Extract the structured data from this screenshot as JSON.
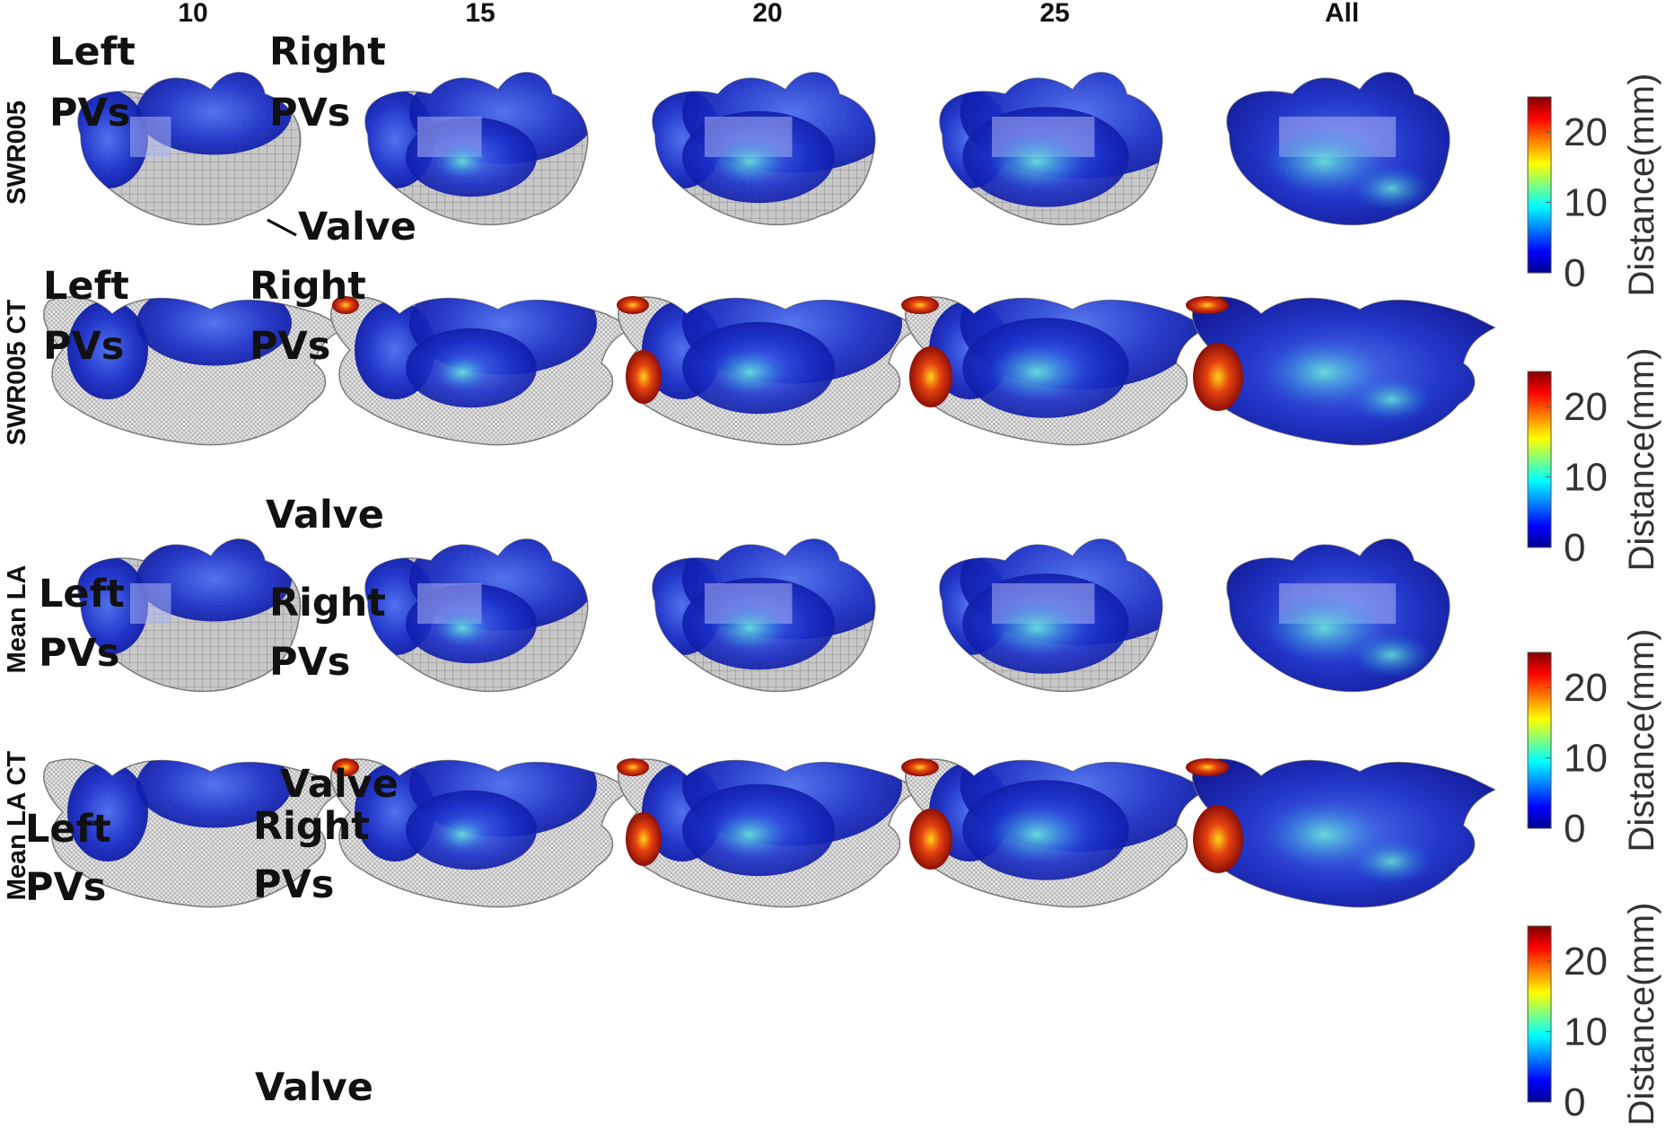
{
  "column_titles": [
    "10",
    "15",
    "20",
    "25",
    "All"
  ],
  "rows": [
    {
      "label": "SWR005",
      "surface": "smooth",
      "annotations": {
        "left": [
          "Left",
          "PVs"
        ],
        "right": [
          "Right",
          "PVs"
        ],
        "valve": "Valve"
      }
    },
    {
      "label": "SWR005 CT",
      "surface": "ct",
      "annotations": {
        "left": [
          "Left",
          "PVs"
        ],
        "right": [
          "Right",
          "PVs"
        ],
        "valve": "Valve"
      }
    },
    {
      "label": "Mean LA",
      "surface": "smooth",
      "annotations": {
        "left": [
          "Left",
          "PVs"
        ],
        "right": [
          "Right",
          "PVs"
        ],
        "valve": "Valve"
      }
    },
    {
      "label": "Mean LA CT",
      "surface": "ct",
      "annotations": {
        "left": [
          "Left",
          "PVs"
        ],
        "right": [
          "Right",
          "PVs"
        ],
        "valve": "Valve"
      }
    }
  ],
  "colorbar": {
    "label": "Distance(mm)",
    "ticks": [
      "0",
      "10",
      "20"
    ],
    "range": [
      0,
      25
    ],
    "colormap": [
      "#00008f",
      "#0000ff",
      "#00ffff",
      "#ffff00",
      "#ff0000",
      "#800000"
    ]
  },
  "colors": {
    "mesh_gray": "#c6c6c6",
    "mesh_line": "#8a8a8a",
    "low_distance": "#1f2fc8",
    "mid_distance": "#3cc6d8",
    "high_distance": "#c81e10"
  }
}
